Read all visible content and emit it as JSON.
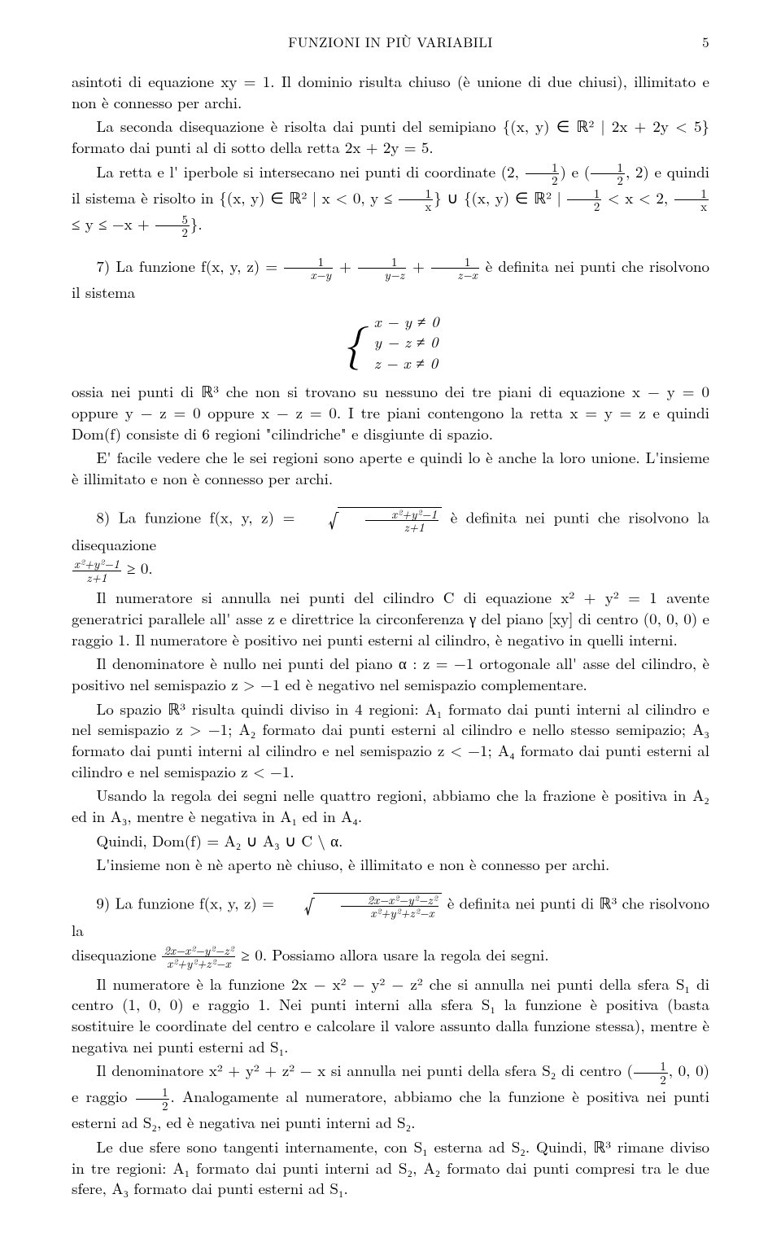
{
  "header": {
    "title": "FUNZIONI IN PIÙ VARIABILI",
    "page": "5"
  },
  "para1": "asintoti di equazione xy = 1. Il dominio risulta chiuso (è unione di due chiusi), illimitato e non è connesso per archi.",
  "para2a": "La seconda disequazione è risolta dai punti del semipiano {(x, y) ∈ ℝ² | 2x + 2y < 5} formato dai punti al di sotto della retta 2x + 2y = 5.",
  "para2b_pre": "La retta e l' iperbole si intersecano nei punti di coordinate (2,",
  "half1": {
    "n": "1",
    "d": "2"
  },
  "para2b_mid1": ") e (",
  "para2b_mid2": ", 2) e quindi il sistema è risolto in {(x, y) ∈ ℝ² | x < 0, y ≤",
  "oneoverx": {
    "n": "1",
    "d": "x"
  },
  "para2b_mid3": "} ∪ {(x, y) ∈ ℝ² |",
  "para2b_mid4": " < x < 2,",
  "para2b_mid5": " ≤ y ≤ −x +",
  "fivehalf": {
    "n": "5",
    "d": "2"
  },
  "para2b_end": "}.",
  "ex7_lead": "7) La funzione f(x, y, z) =",
  "ex7_f1": {
    "n": "1",
    "d": "x−y"
  },
  "ex7_plus": " + ",
  "ex7_f2": {
    "n": "1",
    "d": "y−z"
  },
  "ex7_f3": {
    "n": "1",
    "d": "z−x"
  },
  "ex7_tail": " è definita nei punti che risolvono il sistema",
  "sys": {
    "l1": "x − y ≠ 0",
    "l2": "y − z ≠ 0",
    "l3": "z − x ≠ 0"
  },
  "ex7b": "ossia nei punti di ℝ³ che non si trovano su nessuno dei tre piani di equazione x − y = 0 oppure y − z = 0 oppure x − z = 0. I tre piani contengono la retta x = y = z e quindi Dom(f) consiste di 6 regioni \"cilindriche\" e disgiunte di spazio.",
  "ex7c": "E' facile vedere che le sei regioni sono aperte e quindi lo è anche la loro unione. L'insieme è illimitato e non è connesso per archi.",
  "ex8_lead": "8) La funzione f(x, y, z) =",
  "ex8_rad": {
    "n": "x²+y²−1",
    "d": "z+1"
  },
  "ex8_tail": " è definita nei punti che risolvono la disequazione",
  "ex8_ineq_frac": {
    "n": "x²+y²−1",
    "d": "z+1"
  },
  "ex8_ineq_tail": " ≥ 0.",
  "ex8b": "Il numeratore si annulla nei punti del cilindro C di equazione x² + y² = 1 avente generatrici parallele all' asse z e direttrice la circonferenza γ del piano [xy] di centro (0, 0, 0) e raggio 1. Il numeratore è positivo nei punti esterni al cilindro, è negativo in quelli interni.",
  "ex8c": "Il denominatore è nullo nei punti del piano α : z = −1 ortogonale all' asse del cilindro, è positivo nel semispazio z > −1 ed è negativo nel semispazio complementare.",
  "ex8d": "Lo spazio ℝ³ risulta quindi diviso in 4 regioni: A₁ formato dai punti interni al cilindro e nel semispazio z > −1; A₂ formato dai punti esterni al cilindro e nello stesso semipazio; A₃ formato dai punti interni al cilindro e nel semispazio z < −1; A₄ formato dai punti esterni al cilindro e nel semispazio z < −1.",
  "ex8e": "Usando la regola dei segni nelle quattro regioni, abbiamo che la frazione è positiva in A₂ ed in A₃, mentre è negativa in A₁ ed in A₄.",
  "ex8f": "Quindi, Dom(f) = A₂ ∪ A₃ ∪ C \\ α.",
  "ex8g": "L'insieme non è nè aperto nè chiuso, è illimitato e non è connesso per archi.",
  "ex9_lead": "9) La funzione f(x, y, z) =",
  "ex9_rad": {
    "n": "2x−x²−y²−z²",
    "d": "x²+y²+z²−x"
  },
  "ex9_tail": " è definita nei punti di ℝ³ che risolvono la",
  "ex9b_pre": "disequazione ",
  "ex9b_frac": {
    "n": "2x−x²−y²−z²",
    "d": "x²+y²+z²−x"
  },
  "ex9b_tail": " ≥ 0. Possiamo allora usare la regola dei segni.",
  "ex9c": "Il numeratore è la funzione 2x − x² − y² − z² che si annulla nei punti della sfera S₁ di centro (1, 0, 0) e raggio 1. Nei punti interni alla sfera S₁ la funzione è positiva (basta sostituire le coordinate del centro e calcolare il valore assunto dalla funzione stessa), mentre è negativa nei punti esterni ad S₁.",
  "ex9d_pre": "Il denominatore x² + y² + z² − x si annulla nei punti della sfera S₂ di centro (",
  "ex9d_tail": ", 0, 0) e raggio ",
  "ex9d_end": ". Analogamente al numeratore, abbiamo che la funzione è positiva nei punti esterni ad S₂, ed è negativa nei punti interni ad S₂.",
  "ex9e": "Le due sfere sono tangenti internamente, con S₁ esterna ad S₂. Quindi, ℝ³ rimane diviso in tre regioni: A₁ formato dai punti interni ad S₂, A₂ formato dai punti compresi tra le due sfere, A₃ formato dai punti esterni ad S₁."
}
